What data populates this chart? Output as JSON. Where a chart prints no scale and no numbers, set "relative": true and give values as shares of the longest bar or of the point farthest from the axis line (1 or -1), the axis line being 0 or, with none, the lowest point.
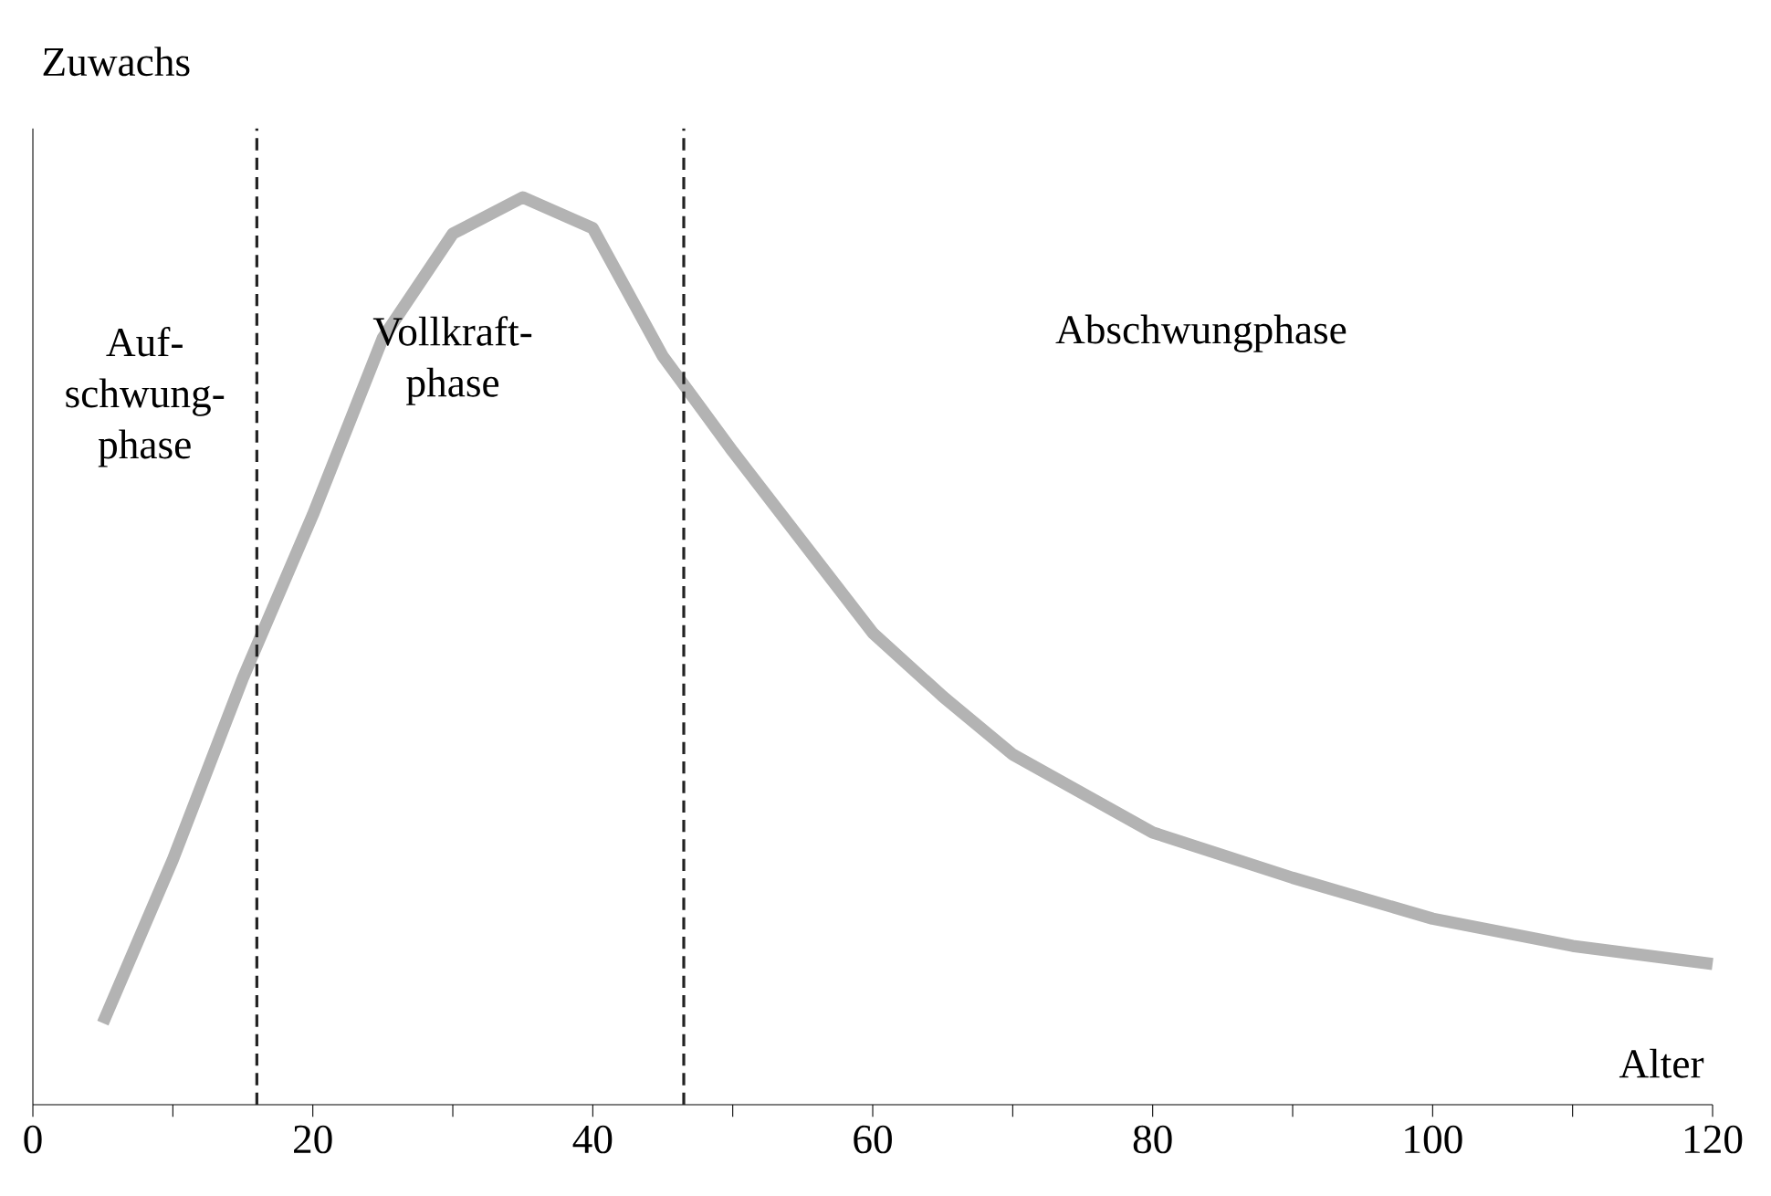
{
  "chart_data": {
    "type": "line",
    "relative": true,
    "ylabel": "Zuwachs",
    "xlabel": "Alter",
    "x": [
      5,
      10,
      15,
      20,
      25,
      30,
      35,
      40,
      45,
      50,
      55,
      60,
      65,
      70,
      80,
      90,
      100,
      110,
      120
    ],
    "series": [
      {
        "color": "#b3b3b3",
        "values": [
          0.09,
          0.27,
          0.47,
          0.65,
          0.845,
          0.96,
          1.0,
          0.966,
          0.825,
          0.72,
          0.62,
          0.52,
          0.45,
          0.386,
          0.3,
          0.25,
          0.205,
          0.175,
          0.155
        ]
      }
    ],
    "xlim": [
      0,
      120
    ],
    "xticks": [
      0,
      {
        "value": 10,
        "label": null
      },
      20,
      {
        "value": 30,
        "label": null
      },
      40,
      {
        "value": 50,
        "label": null
      },
      60,
      {
        "value": 70,
        "label": null
      },
      80,
      {
        "value": 90,
        "label": null
      },
      100,
      {
        "value": 110,
        "label": null
      },
      120
    ],
    "ref_lines": [
      {
        "axis": "x",
        "value": 16,
        "line_style": "dashed",
        "color": "#222222"
      },
      {
        "axis": "x",
        "value": 46.5,
        "line_style": "dashed",
        "color": "#222222"
      }
    ],
    "annotations": [
      "Auf-schwung-phase",
      "Vollkraft-phase",
      "Abschwungphase"
    ],
    "marker": "none",
    "line_style": "solid"
  }
}
